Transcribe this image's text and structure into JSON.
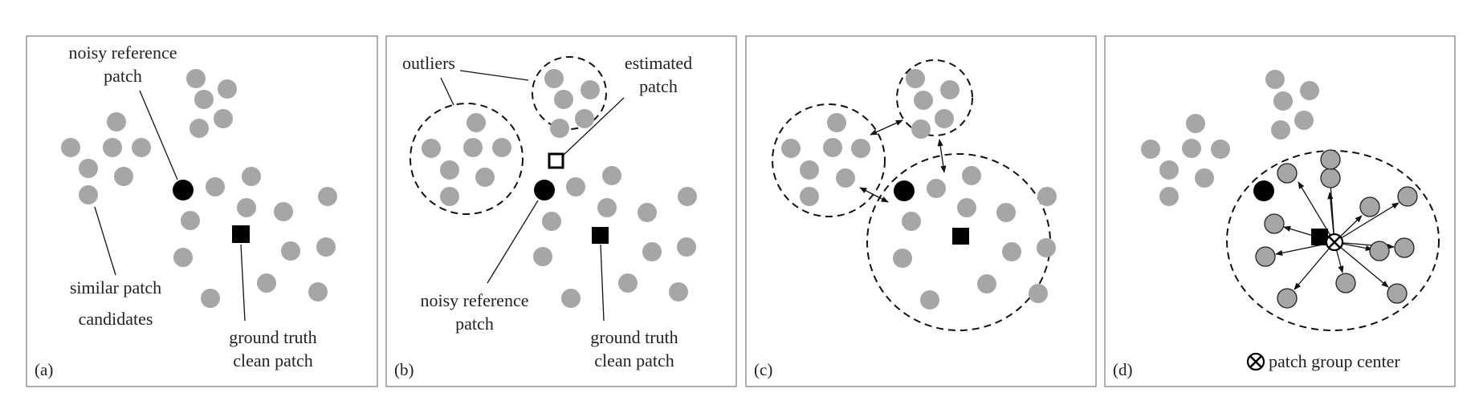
{
  "panels": [
    {
      "id": "a",
      "tag": "(a)",
      "labels": {
        "noisy_ref": [
          "noisy reference",
          "patch"
        ],
        "similar": [
          "similar patch",
          "candidates"
        ],
        "ground_truth": [
          "ground truth",
          "clean patch"
        ]
      }
    },
    {
      "id": "b",
      "tag": "(b)",
      "labels": {
        "outliers": "outliers",
        "estimated": [
          "estimated",
          "patch"
        ],
        "noisy_ref": [
          "noisy reference",
          "patch"
        ],
        "ground_truth": [
          "ground truth",
          "clean patch"
        ]
      }
    },
    {
      "id": "c",
      "tag": "(c)",
      "labels": {}
    },
    {
      "id": "d",
      "tag": "(d)",
      "labels": {
        "legend": "patch group center"
      }
    }
  ]
}
